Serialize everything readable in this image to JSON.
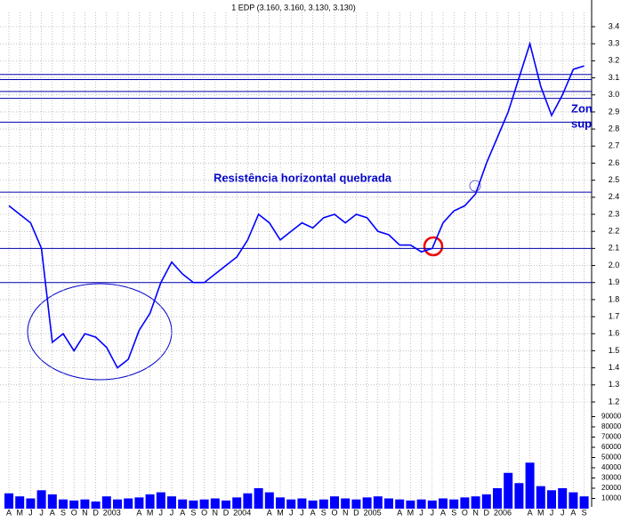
{
  "chart_data": {
    "type": "line",
    "title": "1 EDP (3.160, 3.160, 3.130, 3.130)",
    "annotations": [
      "Resistência horizontal quebrada",
      "Zon",
      "sup"
    ],
    "categories": [
      "A",
      "M",
      "J",
      "J",
      "A",
      "S",
      "O",
      "N",
      "D",
      "2003",
      null,
      null,
      "A",
      "M",
      "J",
      "J",
      "A",
      "S",
      "O",
      "N",
      "D",
      "2004",
      null,
      null,
      "A",
      "M",
      "J",
      "J",
      "A",
      "S",
      "O",
      "N",
      "D",
      "2005",
      null,
      null,
      "A",
      "M",
      "J",
      "J",
      "A",
      "S",
      "O",
      "N",
      "D",
      "2006",
      null,
      null,
      "A",
      "M",
      "J",
      "J",
      "A",
      "S"
    ],
    "series": [
      {
        "name": "EDP",
        "color": "#0000ff",
        "values": [
          2.35,
          2.3,
          2.25,
          2.1,
          1.55,
          1.6,
          1.5,
          1.6,
          1.58,
          1.52,
          1.4,
          1.45,
          1.62,
          1.72,
          1.9,
          2.02,
          1.95,
          1.9,
          1.9,
          1.95,
          2.0,
          2.05,
          2.15,
          2.3,
          2.25,
          2.15,
          2.2,
          2.25,
          2.22,
          2.28,
          2.3,
          2.25,
          2.3,
          2.28,
          2.2,
          2.18,
          2.12,
          2.12,
          2.08,
          2.1,
          2.25,
          2.32,
          2.35,
          2.42,
          2.6,
          2.75,
          2.9,
          3.1,
          3.3,
          3.05,
          2.88,
          3.0,
          3.15,
          3.17
        ]
      },
      {
        "name": "Volume",
        "color": "#0000ff",
        "axis": "y2",
        "values": [
          15000,
          12000,
          10000,
          18000,
          14000,
          9000,
          8000,
          9000,
          7000,
          12000,
          9000,
          10000,
          11000,
          14000,
          16000,
          12000,
          9000,
          8000,
          9000,
          10000,
          8000,
          11000,
          15000,
          20000,
          16000,
          11000,
          9000,
          10000,
          8000,
          9000,
          12000,
          10000,
          9000,
          11000,
          12000,
          10000,
          9000,
          8000,
          9000,
          8000,
          10000,
          9000,
          11000,
          12000,
          14000,
          20000,
          35000,
          25000,
          45000,
          22000,
          18000,
          20000,
          16000,
          12000
        ]
      }
    ],
    "reference_lines": [
      3.12,
      3.09,
      3.02,
      2.98,
      2.84,
      2.43,
      2.1,
      1.9
    ],
    "ylim": [
      1.2,
      3.4
    ],
    "yticks": [
      1.2,
      1.3,
      1.4,
      1.5,
      1.6,
      1.7,
      1.8,
      1.9,
      {
        "value": 2,
        "label": "2.0"
      },
      2.1,
      2.2,
      2.3,
      2.4,
      2.5,
      2.6,
      2.7,
      2.8,
      2.9,
      {
        "value": 3,
        "label": "3.0"
      },
      3.1,
      3.2,
      3.3,
      3.4
    ],
    "y2lim": [
      0,
      100000
    ],
    "y2ticks": [
      10000,
      20000,
      30000,
      40000,
      50000,
      60000,
      70000,
      80000,
      90000
    ],
    "grid": true
  }
}
